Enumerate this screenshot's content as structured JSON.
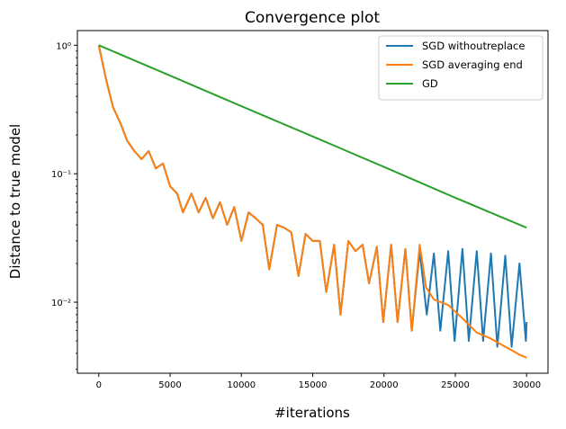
{
  "chart_data": {
    "type": "line",
    "title": "Convergence plot",
    "xlabel": "#iterations",
    "ylabel": "Distance to true model",
    "yscale": "log",
    "xlim": [
      -1500,
      31500
    ],
    "ylim": [
      0.0028,
      1.3
    ],
    "grid": false,
    "legend_position": "top-right",
    "x_ticks": [
      0,
      5000,
      10000,
      15000,
      20000,
      25000,
      30000
    ],
    "x_tick_labels": [
      "0",
      "5000",
      "10000",
      "15000",
      "20000",
      "25000",
      "30000"
    ],
    "y_ticks": [
      0.01,
      0.1,
      1
    ],
    "y_tick_labels": [
      "10⁻²",
      "10⁻¹",
      "10⁰"
    ],
    "series": [
      {
        "name": "SGD withoutreplace",
        "color": "#1f77b4",
        "x": [
          0,
          500,
          1000,
          1500,
          2000,
          2500,
          3000,
          3500,
          4000,
          4500,
          5000,
          5500,
          5900,
          6500,
          7000,
          7500,
          8000,
          8500,
          9000,
          9500,
          10000,
          10500,
          11000,
          11500,
          11950,
          12500,
          13000,
          13500,
          14000,
          14500,
          15000,
          15500,
          15950,
          16500,
          16950,
          17500,
          18000,
          18500,
          18950,
          19500,
          19950,
          20500,
          20950,
          21500,
          21950,
          22500,
          23000,
          23500,
          23950,
          24500,
          24950,
          25500,
          25950,
          26500,
          26950,
          27500,
          27950,
          28500,
          28950,
          29500,
          29950,
          30000
        ],
        "y": [
          1.0,
          0.55,
          0.33,
          0.25,
          0.18,
          0.15,
          0.13,
          0.15,
          0.11,
          0.12,
          0.08,
          0.07,
          0.05,
          0.07,
          0.05,
          0.065,
          0.045,
          0.06,
          0.04,
          0.055,
          0.03,
          0.05,
          0.045,
          0.04,
          0.018,
          0.04,
          0.038,
          0.035,
          0.016,
          0.034,
          0.03,
          0.03,
          0.012,
          0.028,
          0.008,
          0.03,
          0.025,
          0.028,
          0.014,
          0.027,
          0.007,
          0.028,
          0.007,
          0.026,
          0.006,
          0.025,
          0.008,
          0.024,
          0.006,
          0.025,
          0.005,
          0.026,
          0.005,
          0.025,
          0.005,
          0.024,
          0.0045,
          0.023,
          0.0045,
          0.02,
          0.005,
          0.007
        ]
      },
      {
        "name": "SGD averaging end",
        "color": "#ff7f0e",
        "x": [
          0,
          500,
          1000,
          1500,
          2000,
          2500,
          3000,
          3500,
          4000,
          4500,
          5000,
          5500,
          5900,
          6500,
          7000,
          7500,
          8000,
          8500,
          9000,
          9500,
          10000,
          10500,
          11000,
          11500,
          11950,
          12500,
          13000,
          13500,
          14000,
          14500,
          15000,
          15500,
          15950,
          16500,
          16950,
          17500,
          18000,
          18500,
          18950,
          19500,
          19950,
          20500,
          20950,
          21500,
          21950,
          22500,
          22950,
          23500,
          24500,
          25500,
          26500,
          27500,
          28500,
          29000,
          29500,
          30000
        ],
        "y": [
          1.0,
          0.55,
          0.33,
          0.25,
          0.18,
          0.15,
          0.13,
          0.15,
          0.11,
          0.12,
          0.08,
          0.07,
          0.05,
          0.07,
          0.05,
          0.065,
          0.045,
          0.06,
          0.04,
          0.055,
          0.03,
          0.05,
          0.045,
          0.04,
          0.018,
          0.04,
          0.038,
          0.035,
          0.016,
          0.034,
          0.03,
          0.03,
          0.012,
          0.028,
          0.008,
          0.03,
          0.025,
          0.028,
          0.014,
          0.027,
          0.007,
          0.028,
          0.007,
          0.026,
          0.006,
          0.028,
          0.013,
          0.0105,
          0.0095,
          0.0075,
          0.0058,
          0.0052,
          0.0045,
          0.0042,
          0.0039,
          0.0037
        ]
      },
      {
        "name": "GD",
        "color": "#2ca02c",
        "x": [
          0,
          5000,
          10000,
          15000,
          20000,
          25000,
          30000
        ],
        "y": [
          1.0,
          0.58,
          0.335,
          0.195,
          0.113,
          0.065,
          0.038
        ]
      }
    ]
  }
}
